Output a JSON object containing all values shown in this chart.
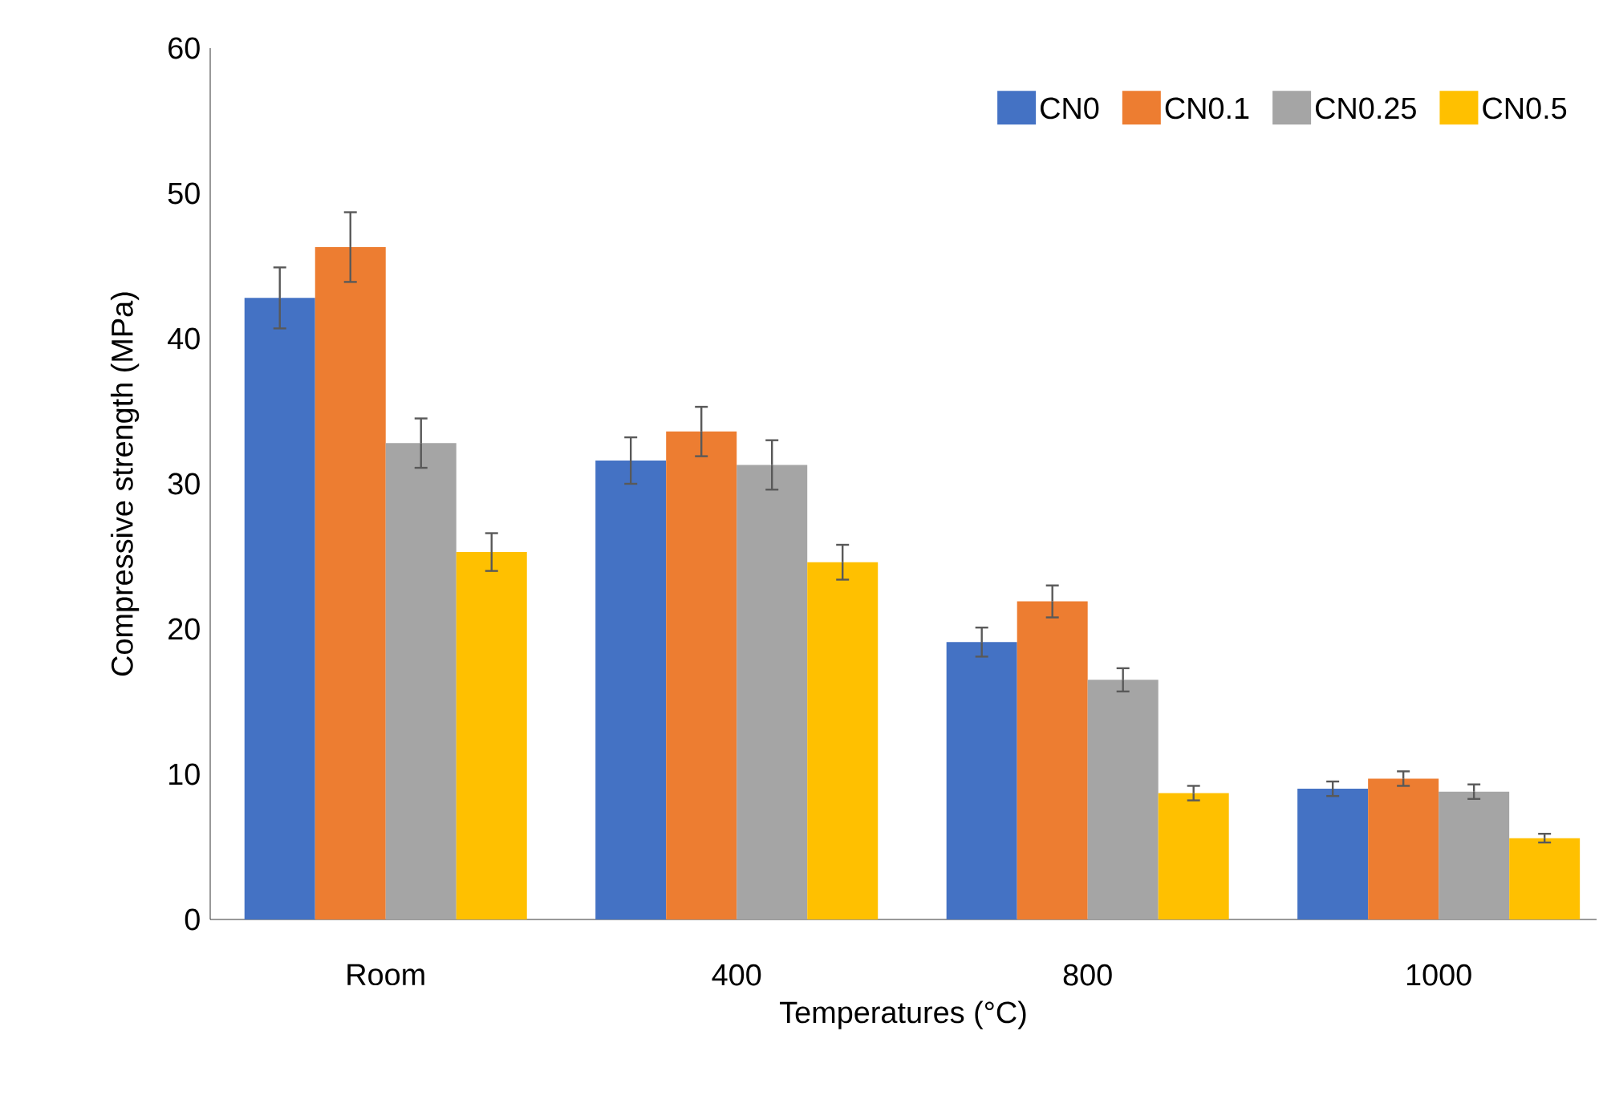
{
  "chart_data": {
    "type": "bar",
    "xlabel": "Temperatures (°C)",
    "ylabel": "Compressive strength (MPa)",
    "categories": [
      "Room",
      "400",
      "800",
      "1000"
    ],
    "series": [
      {
        "name": "CN0",
        "color": "#4472c4",
        "values": [
          42.8,
          31.6,
          19.1,
          9.0
        ],
        "errors": [
          2.1,
          1.6,
          1.0,
          0.5
        ]
      },
      {
        "name": "CN0.1",
        "color": "#ed7d31",
        "values": [
          46.3,
          33.6,
          21.9,
          9.7
        ],
        "errors": [
          2.4,
          1.7,
          1.1,
          0.5
        ]
      },
      {
        "name": "CN0.25",
        "color": "#a5a5a5",
        "values": [
          32.8,
          31.3,
          16.5,
          8.8
        ],
        "errors": [
          1.7,
          1.7,
          0.8,
          0.5
        ]
      },
      {
        "name": "CN0.5",
        "color": "#ffc000",
        "values": [
          25.3,
          24.6,
          8.7,
          5.6
        ],
        "errors": [
          1.3,
          1.2,
          0.5,
          0.3
        ]
      }
    ],
    "ylim": [
      0,
      60
    ],
    "yticks": [
      0,
      10,
      20,
      30,
      40,
      50,
      60
    ],
    "legend": "top right",
    "grid": false
  }
}
